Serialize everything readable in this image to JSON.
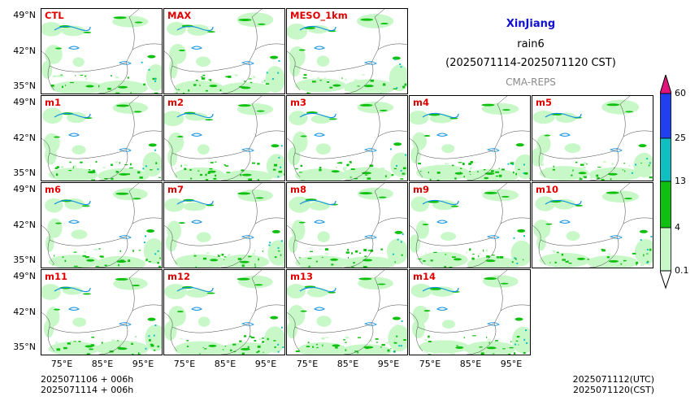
{
  "header": {
    "region": "XinJiang",
    "variable": "rain6",
    "period": "(2025071114-2025071120 CST)",
    "source": "CMA-REPS"
  },
  "panels": {
    "row1": [
      "CTL",
      "MAX",
      "MESO_1km"
    ],
    "row2": [
      "m1",
      "m2",
      "m3",
      "m4",
      "m5"
    ],
    "row3": [
      "m6",
      "m7",
      "m8",
      "m9",
      "m10"
    ],
    "row4": [
      "m11",
      "m12",
      "m13",
      "m14"
    ]
  },
  "axes": {
    "lat_ticks": [
      "49°N",
      "42°N",
      "35°N"
    ],
    "lon_ticks": [
      "75°E",
      "85°E",
      "95°E"
    ]
  },
  "colorbar": {
    "ticks": [
      "60",
      "25",
      "13",
      "4",
      "0.1"
    ],
    "colors": [
      "#e0147a",
      "#2040f0",
      "#10c0c0",
      "#10c010",
      "#c8f8c8"
    ]
  },
  "footer": {
    "init_utc": "2025071106  +  006h",
    "init_cst": "2025071114  +  006h",
    "valid_utc": "2025071112(UTC)",
    "valid_cst": "2025071120(CST)"
  }
}
